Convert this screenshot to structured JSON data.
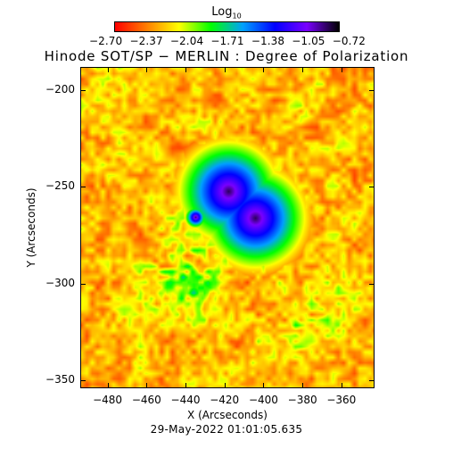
{
  "colorbar": {
    "title": "Log",
    "title_sub": "10",
    "ticks": [
      "−2.70",
      "−2.37",
      "−2.04",
      "−1.71",
      "−1.38",
      "−1.05",
      "−0.72"
    ],
    "range": [
      -2.7,
      -0.72
    ],
    "colors": [
      "#ff0000",
      "#ff7f00",
      "#ffff00",
      "#00ff00",
      "#00a0ff",
      "#0000ff",
      "#7a00ff",
      "#000000"
    ]
  },
  "title": "Hinode SOT/SP − MERLIN : Degree of Polarization",
  "x_axis": {
    "label": "X (Arcseconds)",
    "ticks": [
      "−480",
      "−460",
      "−440",
      "−420",
      "−400",
      "−380",
      "−360"
    ],
    "tick_values": [
      -480,
      -460,
      -440,
      -420,
      -400,
      -380,
      -360
    ],
    "range": [
      -494,
      -343
    ]
  },
  "y_axis": {
    "label": "Y (Arcseconds)",
    "ticks": [
      "−200",
      "−250",
      "−300",
      "−350"
    ],
    "tick_values": [
      -200,
      -250,
      -300,
      -350
    ],
    "range": [
      -354,
      -188
    ]
  },
  "footer": "29-May-2022 01:01:05.635"
}
